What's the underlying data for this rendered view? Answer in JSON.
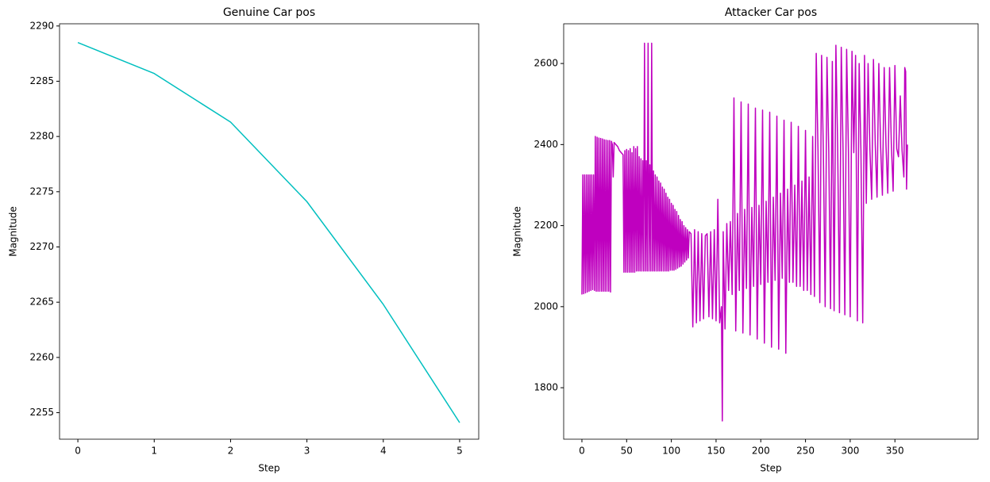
{
  "chart_data": [
    {
      "type": "line",
      "title": "Genuine Car pos",
      "xlabel": "Step",
      "ylabel": "Magnitude",
      "x": [
        0,
        1,
        2,
        3,
        4,
        5
      ],
      "values": [
        2288.5,
        2285.7,
        2281.3,
        2274.1,
        2264.8,
        2254.1
      ],
      "color": "#00bfbf",
      "xlim": [
        -0.24,
        5.25
      ],
      "ylim": [
        2252.6,
        2290.2
      ],
      "xticks": [
        0,
        1,
        2,
        3,
        4,
        5
      ],
      "yticks": [
        2255,
        2260,
        2265,
        2270,
        2275,
        2280,
        2285,
        2290
      ]
    },
    {
      "type": "line",
      "title": "Attacker Car pos",
      "xlabel": "Step",
      "ylabel": "Magnitude",
      "x": [
        0,
        1,
        2,
        3,
        4,
        5,
        6,
        7,
        8,
        9,
        10,
        11,
        12,
        13,
        14,
        15,
        16,
        17,
        18,
        19,
        20,
        21,
        22,
        23,
        24,
        25,
        26,
        27,
        28,
        29,
        30,
        31,
        32,
        33,
        34,
        35,
        36,
        38,
        40,
        42,
        44,
        46,
        47,
        48,
        49,
        50,
        51,
        52,
        53,
        54,
        55,
        56,
        57,
        58,
        59,
        60,
        61,
        62,
        63,
        64,
        65,
        66,
        67,
        68,
        69,
        70,
        71,
        72,
        73,
        74,
        75,
        76,
        77,
        78,
        79,
        80,
        81,
        82,
        83,
        84,
        85,
        86,
        87,
        88,
        89,
        90,
        91,
        92,
        93,
        94,
        95,
        96,
        97,
        98,
        99,
        100,
        101,
        102,
        103,
        104,
        105,
        106,
        107,
        108,
        109,
        110,
        111,
        112,
        113,
        114,
        115,
        116,
        117,
        118,
        119,
        120,
        122,
        124,
        126,
        128,
        130,
        132,
        134,
        136,
        138,
        140,
        142,
        144,
        146,
        148,
        150,
        152,
        154,
        156,
        157,
        158,
        160,
        162,
        164,
        166,
        168,
        170,
        172,
        174,
        176,
        178,
        180,
        182,
        184,
        186,
        188,
        190,
        192,
        194,
        196,
        198,
        200,
        202,
        204,
        206,
        208,
        210,
        212,
        214,
        216,
        218,
        220,
        222,
        224,
        226,
        228,
        230,
        232,
        234,
        236,
        238,
        240,
        242,
        244,
        246,
        248,
        250,
        252,
        254,
        256,
        258,
        260,
        262,
        264,
        266,
        268,
        270,
        272,
        274,
        276,
        278,
        280,
        282,
        284,
        286,
        288,
        290,
        292,
        294,
        296,
        298,
        300,
        302,
        304,
        306,
        308,
        310,
        312,
        314,
        316,
        318,
        320,
        322,
        324,
        326,
        328,
        330,
        332,
        334,
        336,
        338,
        340,
        342,
        344,
        346,
        348,
        350,
        352,
        354,
        356,
        358,
        360,
        361,
        362,
        363,
        364
      ],
      "values": [
        2030,
        2325,
        2032,
        2325,
        2034,
        2325,
        2036,
        2325,
        2038,
        2325,
        2040,
        2325,
        2042,
        2325,
        2040,
        2420,
        2038,
        2418,
        2038,
        2416,
        2038,
        2415,
        2038,
        2414,
        2038,
        2412,
        2038,
        2411,
        2038,
        2410,
        2038,
        2410,
        2036,
        2408,
        2400,
        2320,
        2405,
        2400,
        2395,
        2385,
        2380,
        2375,
        2085,
        2385,
        2085,
        2388,
        2085,
        2385,
        2085,
        2390,
        2085,
        2380,
        2085,
        2395,
        2085,
        2390,
        2088,
        2395,
        2088,
        2370,
        2088,
        2365,
        2088,
        2360,
        2088,
        2650,
        2088,
        2360,
        2088,
        2650,
        2088,
        2350,
        2088,
        2650,
        2088,
        2335,
        2088,
        2325,
        2088,
        2320,
        2088,
        2310,
        2088,
        2305,
        2088,
        2295,
        2088,
        2290,
        2088,
        2280,
        2088,
        2270,
        2088,
        2265,
        2090,
        2255,
        2090,
        2250,
        2090,
        2240,
        2092,
        2235,
        2095,
        2225,
        2098,
        2215,
        2100,
        2210,
        2105,
        2200,
        2110,
        2195,
        2115,
        2190,
        2120,
        2185,
        2180,
        1950,
        2190,
        1960,
        2185,
        1965,
        2180,
        1970,
        2175,
        2180,
        1975,
        2185,
        1970,
        2190,
        1965,
        2265,
        1960,
        2000,
        1718,
        2185,
        1945,
        2205,
        2040,
        2210,
        2030,
        2515,
        1940,
        2230,
        2040,
        2505,
        1935,
        2240,
        2045,
        2500,
        1930,
        2245,
        2050,
        2490,
        1920,
        2250,
        2055,
        2485,
        1910,
        2260,
        2060,
        2480,
        1900,
        2270,
        2065,
        2470,
        1895,
        2280,
        2070,
        2460,
        1885,
        2290,
        2060,
        2455,
        2060,
        2300,
        2050,
        2445,
        2050,
        2310,
        2040,
        2435,
        2040,
        2320,
        2030,
        2420,
        2025,
        2625,
        2385,
        2010,
        2620,
        2380,
        2000,
        2615,
        2385,
        1995,
        2605,
        1990,
        2645,
        2390,
        1985,
        2640,
        2385,
        1980,
        2635,
        2390,
        1975,
        2630,
        2380,
        2620,
        1965,
        2600,
        2385,
        1960,
        2620,
        2255,
        2600,
        2390,
        2265,
        2610,
        2400,
        2270,
        2600,
        2395,
        2275,
        2590,
        2400,
        2280,
        2590,
        2400,
        2285,
        2595,
        2390,
        2370,
        2520,
        2385,
        2320,
        2590,
        2580,
        2290,
        2400
      ],
      "color": "#bf00bf",
      "xlim": [
        -20.4,
        443
      ],
      "ylim": [
        1673,
        2698
      ],
      "xticks": [
        0,
        50,
        100,
        150,
        200,
        250,
        300,
        350
      ],
      "yticks": [
        1800,
        2000,
        2200,
        2400,
        2600
      ]
    }
  ]
}
